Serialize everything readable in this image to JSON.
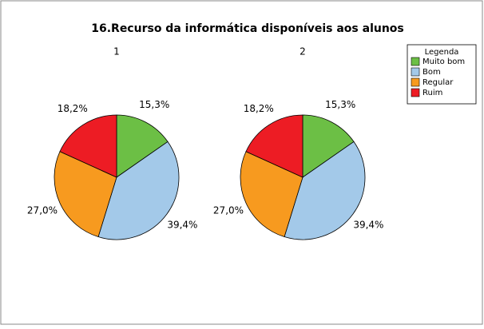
{
  "title": "16.Recurso da informática disponíveis aos alunos",
  "legend_title": "Legenda",
  "chart_data": [
    {
      "type": "pie",
      "subtitle": "1",
      "categories": [
        "Muito bom",
        "Bom",
        "Regular",
        "Ruim"
      ],
      "values": [
        15.3,
        39.4,
        27.0,
        18.2
      ],
      "value_labels": [
        "15,3%",
        "39,4%",
        "27,0%",
        "18,2%"
      ],
      "colors": [
        "#6cbf45",
        "#a3c9e9",
        "#f79a1f",
        "#ed1c24"
      ]
    },
    {
      "type": "pie",
      "subtitle": "2",
      "categories": [
        "Muito bom",
        "Bom",
        "Regular",
        "Ruim"
      ],
      "values": [
        15.3,
        39.4,
        27.0,
        18.2
      ],
      "value_labels": [
        "15,3%",
        "39,4%",
        "27,0%",
        "18,2%"
      ],
      "colors": [
        "#6cbf45",
        "#a3c9e9",
        "#f79a1f",
        "#ed1c24"
      ]
    }
  ]
}
